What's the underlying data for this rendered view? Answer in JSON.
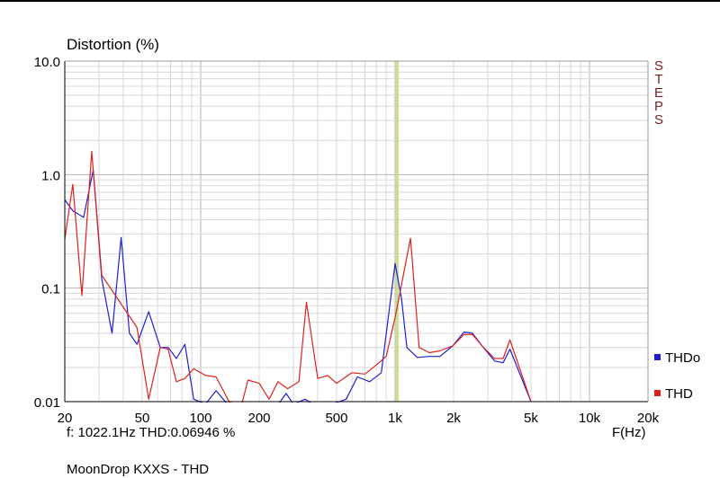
{
  "chart_data": {
    "type": "line",
    "title": "Distortion (%)",
    "xlabel": "F(Hz)",
    "ylabel": "Distortion (%)",
    "xscale": "log",
    "yscale": "log",
    "xlim": [
      20,
      20000
    ],
    "ylim": [
      0.01,
      10
    ],
    "grid": true,
    "legend_position": "bottom-right",
    "x_ticks": [
      20,
      50,
      100,
      200,
      500,
      1000,
      2000,
      5000,
      10000,
      20000
    ],
    "x_tick_labels": [
      "20",
      "50",
      "100",
      "200",
      "500",
      "1k",
      "2k",
      "5k",
      "10k",
      "20k"
    ],
    "y_ticks": [
      0.01,
      0.1,
      1,
      10
    ],
    "y_tick_labels": [
      "0.01",
      "0.1",
      "1.0",
      "10.0"
    ],
    "cursor_marker_hz": 1022.1,
    "series": [
      {
        "name": "THDo",
        "color": "#1f1fd0",
        "points": [
          [
            20,
            0.6
          ],
          [
            22,
            0.48
          ],
          [
            25,
            0.42
          ],
          [
            28,
            1.1
          ],
          [
            31,
            0.12
          ],
          [
            35,
            0.04
          ],
          [
            39,
            0.28
          ],
          [
            43,
            0.04
          ],
          [
            47,
            0.032
          ],
          [
            54,
            0.062
          ],
          [
            62,
            0.03
          ],
          [
            68,
            0.03
          ],
          [
            75,
            0.024
          ],
          [
            83,
            0.032
          ],
          [
            92,
            0.0105
          ],
          [
            106,
            0.0095
          ],
          [
            120,
            0.0125
          ],
          [
            135,
            0.0098
          ],
          [
            160,
            0.0085
          ],
          [
            200,
            0.0075
          ],
          [
            240,
            0.0085
          ],
          [
            275,
            0.0118
          ],
          [
            300,
            0.0095
          ],
          [
            345,
            0.0105
          ],
          [
            375,
            0.0095
          ],
          [
            450,
            0.0092
          ],
          [
            560,
            0.0105
          ],
          [
            640,
            0.0165
          ],
          [
            740,
            0.015
          ],
          [
            850,
            0.018
          ],
          [
            1000,
            0.165
          ],
          [
            1080,
            0.08
          ],
          [
            1150,
            0.03
          ],
          [
            1300,
            0.0245
          ],
          [
            1500,
            0.025
          ],
          [
            1700,
            0.025
          ],
          [
            1980,
            0.031
          ],
          [
            2260,
            0.041
          ],
          [
            2500,
            0.04
          ],
          [
            2800,
            0.031
          ],
          [
            3250,
            0.0228
          ],
          [
            3600,
            0.022
          ],
          [
            3900,
            0.029
          ],
          [
            5000,
            0.01
          ]
        ]
      },
      {
        "name": "THD",
        "color": "#e02020",
        "points": [
          [
            20,
            0.27
          ],
          [
            22,
            0.82
          ],
          [
            24.5,
            0.086
          ],
          [
            27.5,
            1.6
          ],
          [
            31,
            0.13
          ],
          [
            47,
            0.045
          ],
          [
            54,
            0.0105
          ],
          [
            62,
            0.03
          ],
          [
            68,
            0.029
          ],
          [
            75,
            0.015
          ],
          [
            83,
            0.016
          ],
          [
            92,
            0.0195
          ],
          [
            106,
            0.017
          ],
          [
            120,
            0.0165
          ],
          [
            140,
            0.01
          ],
          [
            160,
            0.0085
          ],
          [
            175,
            0.0155
          ],
          [
            200,
            0.0145
          ],
          [
            225,
            0.0105
          ],
          [
            250,
            0.015
          ],
          [
            280,
            0.013
          ],
          [
            320,
            0.015
          ],
          [
            350,
            0.075
          ],
          [
            400,
            0.016
          ],
          [
            450,
            0.017
          ],
          [
            500,
            0.0145
          ],
          [
            600,
            0.018
          ],
          [
            700,
            0.0175
          ],
          [
            800,
            0.021
          ],
          [
            900,
            0.025
          ],
          [
            1000,
            0.055
          ],
          [
            1200,
            0.275
          ],
          [
            1330,
            0.03
          ],
          [
            1500,
            0.027
          ],
          [
            1700,
            0.028
          ],
          [
            1980,
            0.031
          ],
          [
            2260,
            0.039
          ],
          [
            2500,
            0.039
          ],
          [
            2800,
            0.031
          ],
          [
            3250,
            0.024
          ],
          [
            3600,
            0.024
          ],
          [
            3900,
            0.035
          ],
          [
            5000,
            0.01
          ]
        ]
      }
    ]
  },
  "cursor_readout": "f: 1022.1Hz   THD:0.06946   %",
  "side_label": "STEPS",
  "caption": "MoonDrop KXXS - THD",
  "legend": [
    {
      "label": "THDo",
      "color": "#1f1fd0"
    },
    {
      "label": "THD",
      "color": "#e02020"
    }
  ]
}
